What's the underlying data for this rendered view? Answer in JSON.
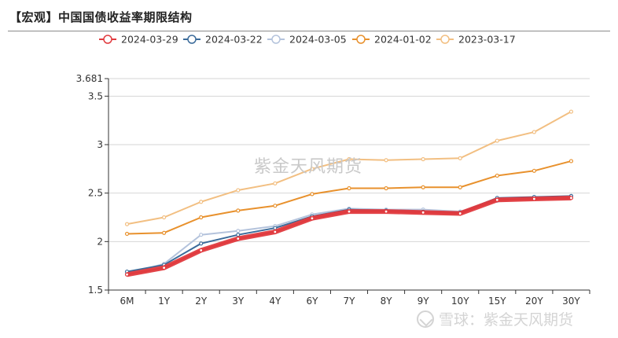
{
  "page": {
    "title": "【宏观】中国国债收益率期限结构"
  },
  "watermark": {
    "center": "紫金天风期货",
    "corner": "雪球：紫金天风期货"
  },
  "chart_data": {
    "type": "line",
    "title": "【宏观】中国国债收益率期限结构",
    "categories": [
      "6M",
      "1Y",
      "2Y",
      "3Y",
      "4Y",
      "6Y",
      "7Y",
      "8Y",
      "9Y",
      "10Y",
      "15Y",
      "20Y",
      "30Y"
    ],
    "ylim": [
      1.5,
      3.681
    ],
    "y_ticks": [
      1.5,
      2,
      2.5,
      3,
      3.5,
      3.681
    ],
    "y_tick_labels": [
      "1.5",
      "2",
      "2.5",
      "3",
      "3.5",
      "3.681"
    ],
    "grid": true,
    "legend_position": "top",
    "series": [
      {
        "name": "2024-03-29",
        "color": "#e03a3e",
        "highlight": true,
        "values": [
          1.66,
          1.73,
          1.91,
          2.03,
          2.1,
          2.24,
          2.31,
          2.31,
          2.3,
          2.29,
          2.43,
          2.44,
          2.45
        ]
      },
      {
        "name": "2024-03-22",
        "color": "#3b6b9a",
        "values": [
          1.69,
          1.76,
          1.98,
          2.07,
          2.14,
          2.26,
          2.33,
          2.32,
          2.31,
          2.3,
          2.45,
          2.46,
          2.47
        ]
      },
      {
        "name": "2024-03-05",
        "color": "#b4c3dc",
        "values": [
          1.67,
          1.77,
          2.07,
          2.11,
          2.16,
          2.28,
          2.34,
          2.33,
          2.33,
          2.31,
          2.42,
          2.45,
          2.47
        ]
      },
      {
        "name": "2024-01-02",
        "color": "#e8912d",
        "values": [
          2.08,
          2.09,
          2.25,
          2.32,
          2.37,
          2.49,
          2.55,
          2.55,
          2.56,
          2.56,
          2.68,
          2.73,
          2.83
        ]
      },
      {
        "name": "2023-03-17",
        "color": "#f2bf82",
        "values": [
          2.18,
          2.25,
          2.41,
          2.53,
          2.6,
          2.75,
          2.85,
          2.84,
          2.85,
          2.86,
          3.04,
          3.13,
          3.34
        ]
      }
    ]
  }
}
